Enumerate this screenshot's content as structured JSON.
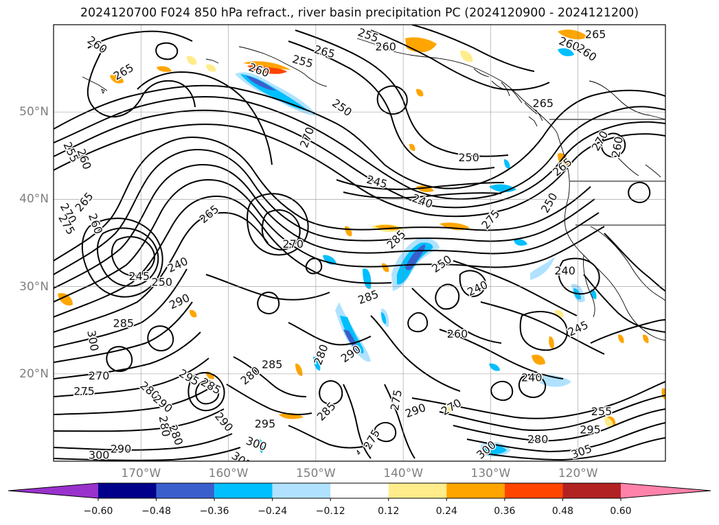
{
  "title": "2024120700 F024 850 hPa refract., river basin precipitation PC (2024120900 - 2024121200)",
  "lat_labels": [
    {
      "text": "50°N",
      "lat": 50
    },
    {
      "text": "40°N",
      "lat": 40
    },
    {
      "text": "30°N",
      "lat": 30
    },
    {
      "text": "20°N",
      "lat": 20
    }
  ],
  "lon_labels": [
    {
      "text": "170°W",
      "lon": -170
    },
    {
      "text": "160°W",
      "lon": -160
    },
    {
      "text": "150°W",
      "lon": -150
    },
    {
      "text": "140°W",
      "lon": -140
    },
    {
      "text": "130°W",
      "lon": -130
    },
    {
      "text": "120°W",
      "lon": -120
    }
  ],
  "colorbar": {
    "ticks": [
      "−0.60",
      "−0.48",
      "−0.36",
      "−0.24",
      "−0.12",
      "0.12",
      "0.24",
      "0.36",
      "0.48",
      "0.60"
    ],
    "colors": [
      "#9932cc",
      "#00008b",
      "#3a5fcd",
      "#00bfff",
      "#b0e2ff",
      "#ffffff",
      "#ffec8b",
      "#ffa500",
      "#ff4500",
      "#b22222",
      "#ff82ab"
    ]
  },
  "contour_labels": [
    {
      "text": "260",
      "lon": -175.0,
      "lat": 57.7,
      "rot": 35
    },
    {
      "text": "265",
      "lon": -172.0,
      "lat": 54.6,
      "rot": -30
    },
    {
      "text": "255",
      "lon": -144.0,
      "lat": 58.8,
      "rot": 20
    },
    {
      "text": "260",
      "lon": -142.0,
      "lat": 57.5,
      "rot": 0
    },
    {
      "text": "265",
      "lon": -149.0,
      "lat": 56.9,
      "rot": 15
    },
    {
      "text": "255",
      "lon": -151.5,
      "lat": 55.8,
      "rot": 15
    },
    {
      "text": "260",
      "lon": -156.5,
      "lat": 54.8,
      "rot": 20
    },
    {
      "text": "250",
      "lon": -147.0,
      "lat": 50.5,
      "rot": 35
    },
    {
      "text": "265",
      "lon": -118.0,
      "lat": 58.9,
      "rot": 0
    },
    {
      "text": "260",
      "lon": -121.0,
      "lat": 57.8,
      "rot": 20
    },
    {
      "text": "260",
      "lon": -119.0,
      "lat": 56.8,
      "rot": 35
    },
    {
      "text": "265",
      "lon": -124.0,
      "lat": 51.0,
      "rot": 0
    },
    {
      "text": "270",
      "lon": -117.5,
      "lat": 46.7,
      "rot": -60
    },
    {
      "text": "260",
      "lon": -115.5,
      "lat": 46.0,
      "rot": -80
    },
    {
      "text": "265",
      "lon": -121.8,
      "lat": 43.7,
      "rot": -40
    },
    {
      "text": "250",
      "lon": -132.5,
      "lat": 44.8,
      "rot": 0
    },
    {
      "text": "245",
      "lon": -143.0,
      "lat": 42.0,
      "rot": 15
    },
    {
      "text": "240",
      "lon": -137.8,
      "lat": 39.8,
      "rot": 20
    },
    {
      "text": "270",
      "lon": -151.0,
      "lat": 47.1,
      "rot": -70
    },
    {
      "text": "250",
      "lon": -123.3,
      "lat": 39.6,
      "rot": -60
    },
    {
      "text": "275",
      "lon": -130.0,
      "lat": 37.7,
      "rot": -50
    },
    {
      "text": "285",
      "lon": -140.8,
      "lat": 35.4,
      "rot": -45
    },
    {
      "text": "250",
      "lon": -135.6,
      "lat": 32.6,
      "rot": -35
    },
    {
      "text": "240",
      "lon": -121.5,
      "lat": 31.8,
      "rot": 0
    },
    {
      "text": "240",
      "lon": -131.5,
      "lat": 29.8,
      "rot": -25
    },
    {
      "text": "285",
      "lon": -144.0,
      "lat": 28.8,
      "rot": -20
    },
    {
      "text": "260",
      "lon": -133.8,
      "lat": 24.6,
      "rot": 0
    },
    {
      "text": "245",
      "lon": -120.0,
      "lat": 25.2,
      "rot": -25
    },
    {
      "text": "290",
      "lon": -146.0,
      "lat": 22.3,
      "rot": -35
    },
    {
      "text": "240",
      "lon": -125.3,
      "lat": 19.6,
      "rot": 0
    },
    {
      "text": "265",
      "lon": -176.5,
      "lat": 39.7,
      "rot": -50
    },
    {
      "text": "255",
      "lon": -178.0,
      "lat": 45.4,
      "rot": 65
    },
    {
      "text": "260",
      "lon": -176.5,
      "lat": 44.6,
      "rot": 70
    },
    {
      "text": "270",
      "lon": -178.3,
      "lat": 38.4,
      "rot": 60
    },
    {
      "text": "275",
      "lon": -178.5,
      "lat": 37.1,
      "rot": 60
    },
    {
      "text": "260",
      "lon": -175.2,
      "lat": 37.2,
      "rot": 70
    },
    {
      "text": "265",
      "lon": -162.2,
      "lat": 38.3,
      "rot": -40
    },
    {
      "text": "270",
      "lon": -152.6,
      "lat": 34.9,
      "rot": 0
    },
    {
      "text": "240",
      "lon": -165.8,
      "lat": 32.5,
      "rot": -25
    },
    {
      "text": "245",
      "lon": -170.2,
      "lat": 31.2,
      "rot": 0
    },
    {
      "text": "250",
      "lon": -167.6,
      "lat": 30.5,
      "rot": 0
    },
    {
      "text": "290",
      "lon": -165.6,
      "lat": 28.3,
      "rot": -25
    },
    {
      "text": "285",
      "lon": -172.0,
      "lat": 25.8,
      "rot": 0
    },
    {
      "text": "300",
      "lon": -175.5,
      "lat": 23.8,
      "rot": 80
    },
    {
      "text": "270",
      "lon": -174.8,
      "lat": 19.8,
      "rot": 0
    },
    {
      "text": "275",
      "lon": -176.5,
      "lat": 18.0,
      "rot": 0
    },
    {
      "text": "280",
      "lon": -169.0,
      "lat": 18.1,
      "rot": 40
    },
    {
      "text": "295",
      "lon": -164.5,
      "lat": 19.6,
      "rot": 30
    },
    {
      "text": "285",
      "lon": -162.0,
      "lat": 18.6,
      "rot": 30
    },
    {
      "text": "290",
      "lon": -167.5,
      "lat": 16.6,
      "rot": 40
    },
    {
      "text": "290",
      "lon": -160.5,
      "lat": 14.5,
      "rot": 50
    },
    {
      "text": "280",
      "lon": -167.3,
      "lat": 14.0,
      "rot": 80
    },
    {
      "text": "280",
      "lon": -166.0,
      "lat": 13.0,
      "rot": 70
    },
    {
      "text": "290",
      "lon": -172.3,
      "lat": 11.4,
      "rot": 0
    },
    {
      "text": "300",
      "lon": -174.8,
      "lat": 10.7,
      "rot": 0
    },
    {
      "text": "285",
      "lon": -155.0,
      "lat": 21.1,
      "rot": 0
    },
    {
      "text": "280",
      "lon": -157.5,
      "lat": 19.8,
      "rot": -40
    },
    {
      "text": "280",
      "lon": -149.4,
      "lat": 22.2,
      "rot": -70
    },
    {
      "text": "295",
      "lon": -155.8,
      "lat": 14.3,
      "rot": 0
    },
    {
      "text": "285",
      "lon": -148.8,
      "lat": 15.7,
      "rot": -45
    },
    {
      "text": "300",
      "lon": -156.8,
      "lat": 12.0,
      "rot": 20
    },
    {
      "text": "305",
      "lon": -158.5,
      "lat": 10.1,
      "rot": 35
    },
    {
      "text": "275",
      "lon": -143.6,
      "lat": 12.5,
      "rot": -60
    },
    {
      "text": "275",
      "lon": -140.8,
      "lat": 17.0,
      "rot": -80
    },
    {
      "text": "290",
      "lon": -138.6,
      "lat": 15.8,
      "rot": -20
    },
    {
      "text": "270",
      "lon": -134.5,
      "lat": 16.2,
      "rot": -30
    },
    {
      "text": "300",
      "lon": -130.5,
      "lat": 11.3,
      "rot": -40
    },
    {
      "text": "280",
      "lon": -124.6,
      "lat": 12.5,
      "rot": 0
    },
    {
      "text": "255",
      "lon": -117.3,
      "lat": 15.7,
      "rot": 0
    },
    {
      "text": "295",
      "lon": -118.6,
      "lat": 13.6,
      "rot": 0
    },
    {
      "text": "305",
      "lon": -119.6,
      "lat": 11.1,
      "rot": -20
    }
  ]
}
